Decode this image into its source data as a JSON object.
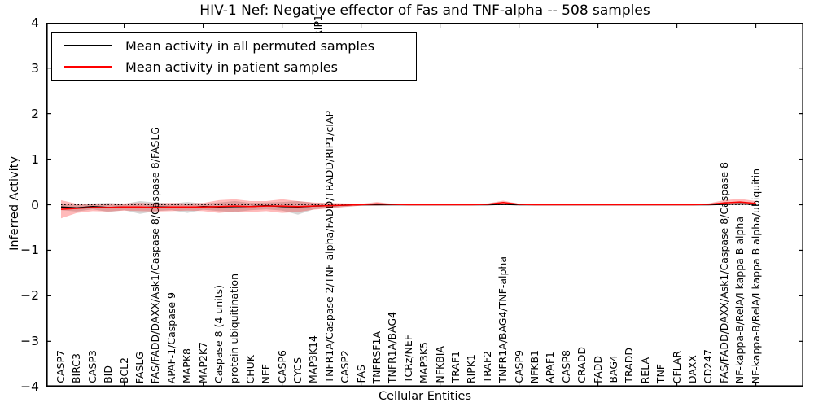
{
  "figure": {
    "title": "HIV-1 Nef: Negative effector of Fas and TNF-alpha -- 508 samples",
    "top_clipped_label": "TRADD/RIP1"
  },
  "chart_data": {
    "type": "line",
    "title": "HIV-1 Nef: Negative effector of Fas and TNF-alpha -- 508 samples",
    "xlabel": "Cellular Entities",
    "ylabel": "Inferred Activity",
    "ylim": [
      -4,
      4
    ],
    "yticks": [
      4,
      3,
      2,
      1,
      0,
      -1,
      -2,
      -3,
      -4
    ],
    "grid": false,
    "zero_line": "dotted",
    "legend_position": "upper left",
    "categories": [
      "CASP7",
      "BIRC3",
      "CASP3",
      "BID",
      "BCL2",
      "FASLG",
      "FAS/FADD/DAXX/Ask1/Caspase 8/Caspase 8/FASLG",
      "APAF-1/Caspase 9",
      "MAPK8",
      "MAP2K7",
      "Caspase 8 (4 units)",
      "protein ubiquitination",
      "CHUK",
      "NEF",
      "CASP6",
      "CYCS",
      "MAP3K14",
      "TNFR1A/Caspase 2/TNF-alpha/FADD/TRADD/RIP1/cIAP",
      "CASP2",
      "FAS",
      "TNFRSF1A",
      "TNFR1A/BAG4",
      "TCRz/NEF",
      "MAP3K5",
      "NFKBIA",
      "TRAF1",
      "RIPK1",
      "TRAF2",
      "TNFR1A/BAG4/TNF-alpha",
      "CASP9",
      "NFKB1",
      "APAF1",
      "CASP8",
      "CRADD",
      "FADD",
      "BAG4",
      "TRADD",
      "RELA",
      "TNF",
      "CFLAR",
      "DAXX",
      "CD247",
      "FAS/FADD/DAXX/Ask1/Caspase 8/Caspase 8",
      "NF-kappa-B/RelA/I kappa B alpha",
      "NF-kappa-B/RelA/I kappa B alpha/ubiquitin"
    ],
    "series": [
      {
        "name": "Mean activity in all permuted samples",
        "color": "#000000",
        "band_color": "rgba(0,0,0,0.16)",
        "values": [
          -0.05,
          -0.07,
          -0.04,
          -0.06,
          -0.05,
          -0.06,
          -0.05,
          -0.05,
          -0.06,
          -0.04,
          -0.05,
          -0.04,
          -0.04,
          -0.02,
          -0.04,
          -0.05,
          -0.03,
          -0.02,
          -0.01,
          0,
          0,
          0,
          0,
          0,
          0,
          0,
          0,
          0,
          0.01,
          0,
          0,
          0,
          0,
          0,
          0,
          0,
          0,
          0,
          0,
          0,
          0,
          0,
          0.01,
          0.02,
          0.01
        ],
        "band_upper": [
          0.02,
          0,
          0.03,
          0.04,
          0.02,
          0.08,
          0.05,
          0.03,
          0.06,
          0.03,
          0.05,
          0.08,
          0.04,
          0.05,
          0.06,
          0.08,
          0.04,
          0.03,
          0.02,
          0.01,
          0.01,
          0.01,
          0.01,
          0.01,
          0.01,
          0.01,
          0.01,
          0.01,
          0.03,
          0.01,
          0.01,
          0.01,
          0.01,
          0.01,
          0.01,
          0.01,
          0.01,
          0.01,
          0.01,
          0.01,
          0.01,
          0.01,
          0.03,
          0.04,
          0.03
        ],
        "band_lower": [
          -0.12,
          -0.15,
          -0.1,
          -0.16,
          -0.12,
          -0.2,
          -0.14,
          -0.12,
          -0.18,
          -0.11,
          -0.14,
          -0.16,
          -0.12,
          -0.1,
          -0.13,
          -0.22,
          -0.1,
          -0.07,
          -0.04,
          -0.02,
          -0.01,
          -0.01,
          -0.01,
          -0.01,
          -0.01,
          -0.01,
          -0.01,
          -0.01,
          -0.01,
          -0.01,
          -0.01,
          -0.01,
          -0.01,
          -0.01,
          -0.01,
          -0.01,
          -0.01,
          -0.01,
          -0.01,
          -0.01,
          -0.01,
          -0.01,
          -0.01,
          -0.01,
          -0.01
        ]
      },
      {
        "name": "Mean activity in patient samples",
        "color": "#ff0000",
        "band_color": "rgba(255,0,0,0.27)",
        "values": [
          -0.1,
          -0.08,
          -0.06,
          -0.06,
          -0.05,
          -0.05,
          -0.06,
          -0.05,
          -0.05,
          -0.05,
          -0.04,
          -0.03,
          -0.04,
          -0.03,
          -0.03,
          -0.04,
          -0.03,
          -0.02,
          -0.01,
          0,
          0.02,
          0.01,
          0,
          0,
          0,
          0,
          0,
          0.01,
          0.05,
          0.01,
          0,
          0,
          0,
          0,
          0,
          0,
          0,
          0,
          0,
          0,
          0,
          0.01,
          0.04,
          0.06,
          0.03
        ],
        "band_upper": [
          0.1,
          0.02,
          0.02,
          0.03,
          0.03,
          0.04,
          0.03,
          0.04,
          0.03,
          0.04,
          0.1,
          0.12,
          0.08,
          0.08,
          0.12,
          0.08,
          0.05,
          0.04,
          0.03,
          0.02,
          0.06,
          0.02,
          0.01,
          0.01,
          0.01,
          0.01,
          0.01,
          0.03,
          0.09,
          0.02,
          0.01,
          0.01,
          0.01,
          0.01,
          0.01,
          0.01,
          0.01,
          0.01,
          0.01,
          0.01,
          0.01,
          0.03,
          0.1,
          0.13,
          0.08
        ],
        "band_lower": [
          -0.3,
          -0.18,
          -0.14,
          -0.15,
          -0.13,
          -0.14,
          -0.15,
          -0.14,
          -0.13,
          -0.14,
          -0.18,
          -0.15,
          -0.16,
          -0.14,
          -0.18,
          -0.16,
          -0.11,
          -0.08,
          -0.05,
          -0.02,
          -0.02,
          -0.01,
          -0.01,
          -0.01,
          -0.01,
          -0.01,
          -0.01,
          0,
          0,
          -0.01,
          -0.01,
          -0.01,
          -0.01,
          -0.01,
          -0.01,
          -0.01,
          -0.01,
          -0.01,
          -0.01,
          -0.01,
          -0.01,
          0,
          0,
          0.01,
          0
        ]
      }
    ]
  }
}
